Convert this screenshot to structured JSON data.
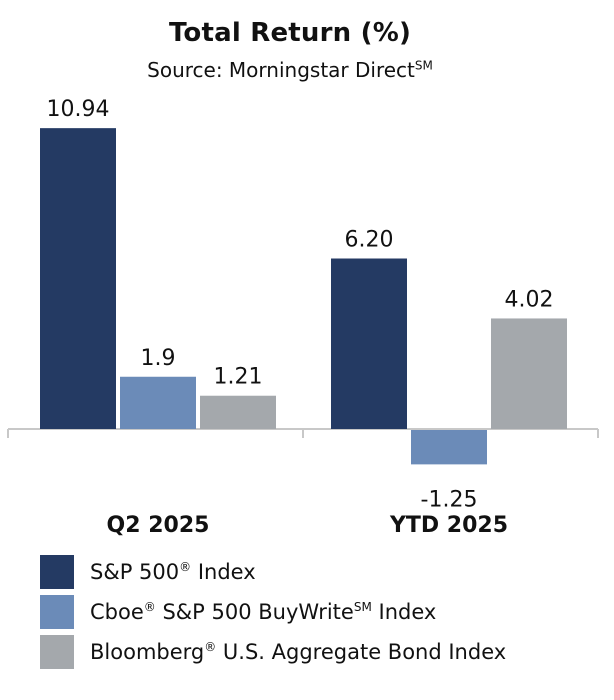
{
  "chart_data": {
    "type": "bar",
    "title": "Total Return (%)",
    "subtitle_prefix": "Source: Morningstar Direct",
    "subtitle_sup": "SM",
    "categories": [
      "Q2 2025",
      "YTD 2025"
    ],
    "series": [
      {
        "name": "S&P 500® Index",
        "values": [
          10.94,
          6.2
        ],
        "labels": [
          "10.94",
          "6.20"
        ],
        "color": "#243A63"
      },
      {
        "name": "Cboe® S&P 500 BuyWriteSM Index",
        "values": [
          1.9,
          -1.25
        ],
        "labels": [
          "1.9",
          "-1.25"
        ],
        "color": "#6B8BB8"
      },
      {
        "name": "Bloomberg® U.S. Aggregate Bond Index",
        "values": [
          1.21,
          4.02
        ],
        "labels": [
          "1.21",
          "4.02"
        ],
        "color": "#A4A8AC"
      }
    ],
    "grid": false,
    "legend_position": "bottom"
  },
  "colors": {
    "axis": "#C8C8C8",
    "text": "#111111"
  }
}
